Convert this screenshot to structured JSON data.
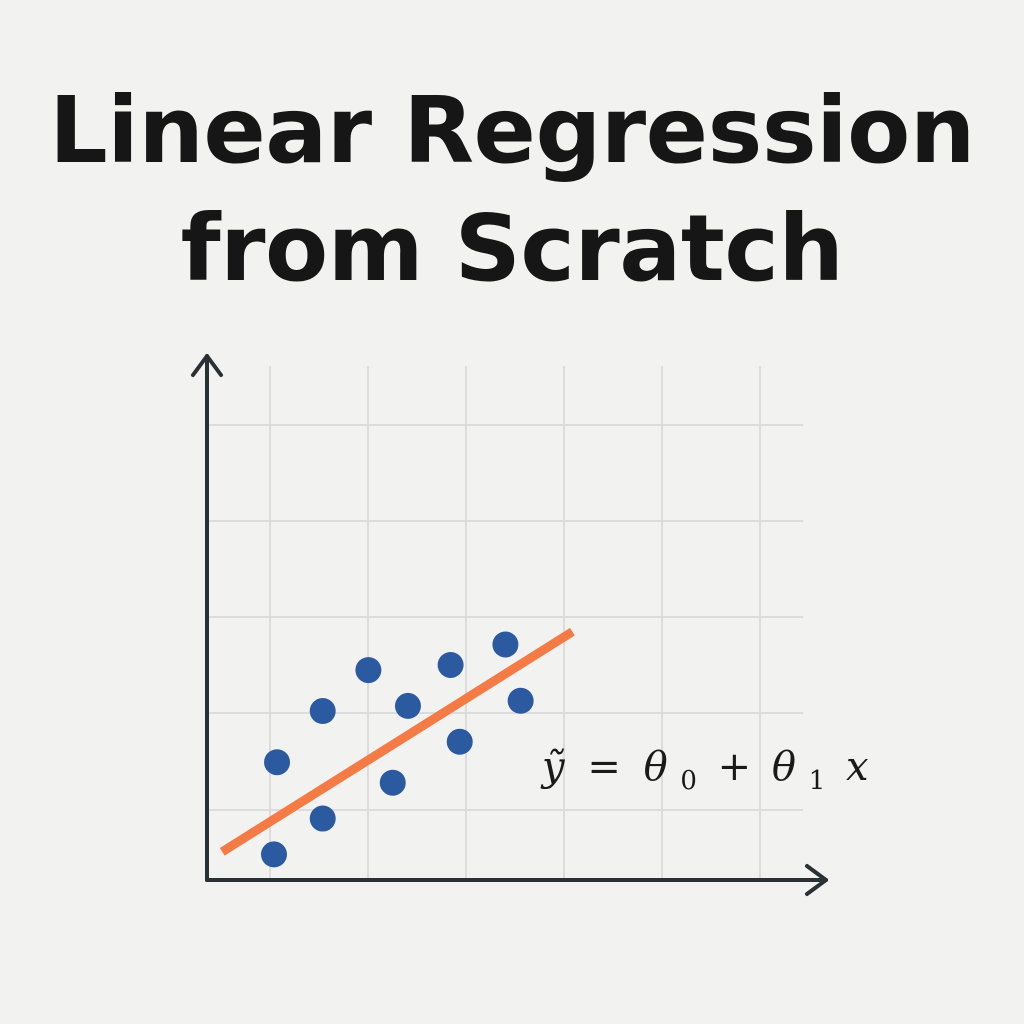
{
  "title": {
    "line1": "Linear Regression",
    "line2": "from Scratch"
  },
  "chart_data": {
    "type": "scatter",
    "xlim": [
      0,
      10
    ],
    "ylim": [
      0,
      10
    ],
    "grid": true,
    "points": [
      {
        "x": 1.1,
        "y": 0.5
      },
      {
        "x": 1.15,
        "y": 2.3
      },
      {
        "x": 1.9,
        "y": 1.2
      },
      {
        "x": 1.9,
        "y": 3.3
      },
      {
        "x": 2.65,
        "y": 4.1
      },
      {
        "x": 3.05,
        "y": 1.9
      },
      {
        "x": 3.3,
        "y": 3.4
      },
      {
        "x": 4.0,
        "y": 4.2
      },
      {
        "x": 4.15,
        "y": 2.7
      },
      {
        "x": 4.9,
        "y": 4.6
      },
      {
        "x": 5.15,
        "y": 3.5
      }
    ],
    "fit_line": {
      "x": [
        0.25,
        6.0
      ],
      "y": [
        0.55,
        4.85
      ]
    },
    "equation": {
      "lhs": "ỹ",
      "eq": "=",
      "theta": "θ",
      "sub0": "0",
      "plus": "+",
      "sub1": "1",
      "var": "x"
    },
    "colors": {
      "points": "#2c5aa0",
      "fit_line": "#f47b45",
      "axes": "#2b3035",
      "grid": "#dcdcdc"
    }
  }
}
